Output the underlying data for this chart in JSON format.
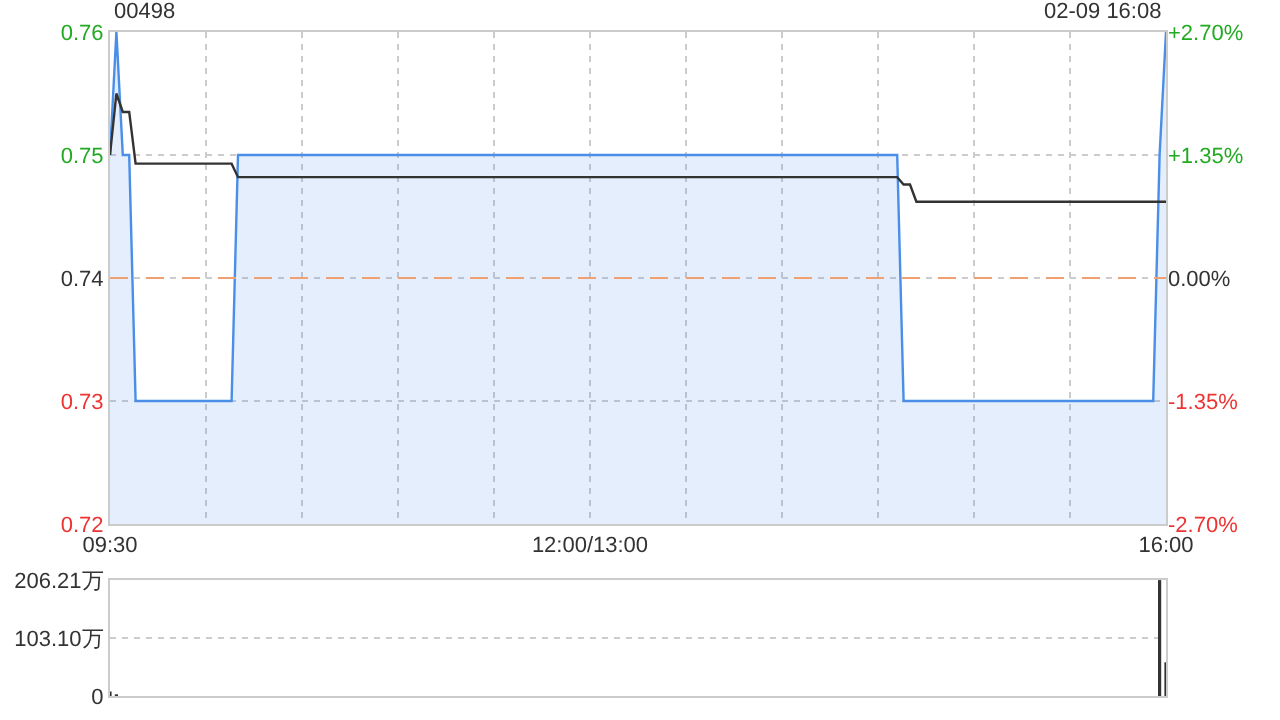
{
  "chart_data": [
    {
      "type": "area",
      "title": "00498",
      "annotations": [
        "02-09 16:08"
      ],
      "categories": [
        "09:30",
        null,
        null,
        null,
        null,
        null,
        null,
        null,
        null,
        null,
        null,
        null,
        null,
        null,
        null,
        null,
        null,
        null,
        null,
        null,
        null,
        null,
        null,
        null,
        null,
        null,
        null,
        null,
        null,
        null,
        null,
        null,
        null,
        null,
        null,
        null,
        null,
        null,
        null,
        null,
        null,
        null,
        null,
        null,
        null,
        null,
        null,
        null,
        null,
        null,
        null,
        null,
        null,
        null,
        null,
        null,
        null,
        null,
        null,
        null,
        null,
        null,
        null,
        null,
        null,
        null,
        null,
        null,
        null,
        null,
        null,
        null,
        null,
        null,
        null,
        "12:00/13:00",
        null,
        null,
        null,
        null,
        null,
        null,
        null,
        null,
        null,
        null,
        null,
        null,
        null,
        null,
        null,
        null,
        null,
        null,
        null,
        null,
        null,
        null,
        null,
        null,
        null,
        null,
        null,
        null,
        null,
        null,
        null,
        null,
        null,
        null,
        null,
        null,
        null,
        null,
        null,
        null,
        null,
        null,
        null,
        null,
        null,
        null,
        null,
        null,
        null,
        null,
        null,
        null,
        null,
        null,
        null,
        null,
        null,
        null,
        null,
        null,
        null,
        null,
        null,
        null,
        null,
        null,
        null,
        null,
        null,
        null,
        null,
        null,
        null,
        null,
        null,
        null,
        null,
        null,
        null,
        null,
        null,
        null,
        null,
        null,
        null,
        null,
        null,
        null,
        null,
        "16:00"
      ],
      "ylim": [
        0.72,
        0.76
      ],
      "yticks": [
        0.72,
        0.73,
        0.74,
        0.75,
        0.76
      ],
      "y2lim": [
        -2.7,
        2.7
      ],
      "y2ticks": [
        {
          "value": -2.7,
          "label": "-2.70%"
        },
        {
          "value": -1.35,
          "label": "-1.35%"
        },
        {
          "value": 0,
          "label": "0.00%"
        },
        {
          "value": 1.35,
          "label": "+1.35%"
        },
        {
          "value": 2.7,
          "label": "+2.70%"
        }
      ],
      "series": [
        {
          "type": "area",
          "color": "#4a8ee8",
          "values": [
            0.75,
            0.76,
            0.75,
            0.75,
            0.73,
            0.73,
            0.73,
            0.73,
            0.73,
            0.73,
            0.73,
            0.73,
            0.73,
            0.73,
            0.73,
            0.73,
            0.73,
            0.73,
            0.73,
            0.73,
            0.75,
            0.75,
            0.75,
            0.75,
            0.75,
            0.75,
            0.75,
            0.75,
            0.75,
            0.75,
            0.75,
            0.75,
            0.75,
            0.75,
            0.75,
            0.75,
            0.75,
            0.75,
            0.75,
            0.75,
            0.75,
            0.75,
            0.75,
            0.75,
            0.75,
            0.75,
            0.75,
            0.75,
            0.75,
            0.75,
            0.75,
            0.75,
            0.75,
            0.75,
            0.75,
            0.75,
            0.75,
            0.75,
            0.75,
            0.75,
            0.75,
            0.75,
            0.75,
            0.75,
            0.75,
            0.75,
            0.75,
            0.75,
            0.75,
            0.75,
            0.75,
            0.75,
            0.75,
            0.75,
            0.75,
            0.75,
            0.75,
            0.75,
            0.75,
            0.75,
            0.75,
            0.75,
            0.75,
            0.75,
            0.75,
            0.75,
            0.75,
            0.75,
            0.75,
            0.75,
            0.75,
            0.75,
            0.75,
            0.75,
            0.75,
            0.75,
            0.75,
            0.75,
            0.75,
            0.75,
            0.75,
            0.75,
            0.75,
            0.75,
            0.75,
            0.75,
            0.75,
            0.75,
            0.75,
            0.75,
            0.75,
            0.75,
            0.75,
            0.75,
            0.75,
            0.75,
            0.75,
            0.75,
            0.75,
            0.75,
            0.75,
            0.75,
            0.75,
            0.75,
            0.73,
            0.73,
            0.73,
            0.73,
            0.73,
            0.73,
            0.73,
            0.73,
            0.73,
            0.73,
            0.73,
            0.73,
            0.73,
            0.73,
            0.73,
            0.73,
            0.73,
            0.73,
            0.73,
            0.73,
            0.73,
            0.73,
            0.73,
            0.73,
            0.73,
            0.73,
            0.73,
            0.73,
            0.73,
            0.73,
            0.73,
            0.73,
            0.73,
            0.73,
            0.73,
            0.73,
            0.73,
            0.73,
            0.73,
            0.73,
            0.75,
            0.76
          ]
        },
        {
          "type": "line",
          "color": "#333333",
          "values": [
            0.75,
            0.755,
            0.7535,
            0.7535,
            0.7493,
            0.7493,
            0.7493,
            0.7493,
            0.7493,
            0.7493,
            0.7493,
            0.7493,
            0.7493,
            0.7493,
            0.7493,
            0.7493,
            0.7493,
            0.7493,
            0.7493,
            0.7493,
            0.7482,
            0.7482,
            0.7482,
            0.7482,
            0.7482,
            0.7482,
            0.7482,
            0.7482,
            0.7482,
            0.7482,
            0.7482,
            0.7482,
            0.7482,
            0.7482,
            0.7482,
            0.7482,
            0.7482,
            0.7482,
            0.7482,
            0.7482,
            0.7482,
            0.7482,
            0.7482,
            0.7482,
            0.7482,
            0.7482,
            0.7482,
            0.7482,
            0.7482,
            0.7482,
            0.7482,
            0.7482,
            0.7482,
            0.7482,
            0.7482,
            0.7482,
            0.7482,
            0.7482,
            0.7482,
            0.7482,
            0.7482,
            0.7482,
            0.7482,
            0.7482,
            0.7482,
            0.7482,
            0.7482,
            0.7482,
            0.7482,
            0.7482,
            0.7482,
            0.7482,
            0.7482,
            0.7482,
            0.7482,
            0.7482,
            0.7482,
            0.7482,
            0.7482,
            0.7482,
            0.7482,
            0.7482,
            0.7482,
            0.7482,
            0.7482,
            0.7482,
            0.7482,
            0.7482,
            0.7482,
            0.7482,
            0.7482,
            0.7482,
            0.7482,
            0.7482,
            0.7482,
            0.7482,
            0.7482,
            0.7482,
            0.7482,
            0.7482,
            0.7482,
            0.7482,
            0.7482,
            0.7482,
            0.7482,
            0.7482,
            0.7482,
            0.7482,
            0.7482,
            0.7482,
            0.7482,
            0.7482,
            0.7482,
            0.7482,
            0.7482,
            0.7482,
            0.7482,
            0.7482,
            0.7482,
            0.7482,
            0.7482,
            0.7482,
            0.7482,
            0.7482,
            0.7476,
            0.7476,
            0.7462,
            0.7462,
            0.7462,
            0.7462,
            0.7462,
            0.7462,
            0.7462,
            0.7462,
            0.7462,
            0.7462,
            0.7462,
            0.7462,
            0.7462,
            0.7462,
            0.7462,
            0.7462,
            0.7462,
            0.7462,
            0.7462,
            0.7462,
            0.7462,
            0.7462,
            0.7462,
            0.7462,
            0.7462,
            0.7462,
            0.7462,
            0.7462,
            0.7462,
            0.7462,
            0.7462,
            0.7462,
            0.7462,
            0.7462,
            0.7462,
            0.7462,
            0.7462,
            0.7462,
            0.7462,
            0.7462
          ]
        }
      ],
      "ref_lines": [
        {
          "axis": "y",
          "value": 0.74,
          "color": "#f0a070",
          "line_style": "dashed"
        }
      ],
      "grid": true
    },
    {
      "type": "bar",
      "color": "#333333",
      "categories": [
        null,
        null,
        null,
        null,
        null,
        null,
        null,
        null,
        null,
        null,
        null,
        null,
        null,
        null,
        null,
        null,
        null,
        null,
        null,
        null,
        null,
        null,
        null,
        null,
        null,
        null,
        null,
        null,
        null,
        null,
        null,
        null,
        null,
        null,
        null,
        null,
        null,
        null,
        null,
        null,
        null,
        null,
        null,
        null,
        null,
        null,
        null,
        null,
        null,
        null,
        null,
        null,
        null,
        null,
        null,
        null,
        null,
        null,
        null,
        null,
        null,
        null,
        null,
        null,
        null,
        null,
        null,
        null,
        null,
        null,
        null,
        null,
        null,
        null,
        null,
        null,
        null,
        null,
        null,
        null,
        null,
        null,
        null,
        null,
        null,
        null,
        null,
        null,
        null,
        null,
        null,
        null,
        null,
        null,
        null,
        null,
        null,
        null,
        null,
        null,
        null,
        null,
        null,
        null,
        null,
        null,
        null,
        null,
        null,
        null,
        null,
        null,
        null,
        null,
        null,
        null,
        null,
        null,
        null,
        null,
        null,
        null,
        null,
        null,
        null,
        null,
        null,
        null,
        null,
        null,
        null,
        null,
        null,
        null,
        null,
        null,
        null,
        null,
        null,
        null,
        null,
        null,
        null,
        null,
        null,
        null,
        null,
        null,
        null,
        null,
        null,
        null,
        null,
        null,
        null,
        null,
        null,
        null,
        null,
        null,
        null,
        null,
        null,
        null,
        null,
        null
      ],
      "values": [
        8,
        3,
        0,
        0,
        0,
        0,
        0,
        0,
        0,
        0,
        0,
        0,
        0,
        0,
        0,
        0,
        0,
        0,
        0,
        0,
        0,
        0,
        0,
        0,
        0,
        0,
        0,
        0,
        0,
        0,
        0,
        0,
        0,
        0,
        0,
        0,
        0,
        0,
        0,
        0,
        0,
        0,
        0,
        0,
        0,
        0,
        0,
        0,
        0,
        0,
        0,
        0,
        0,
        0,
        0,
        0,
        0,
        0,
        0,
        0,
        0,
        0,
        0,
        0,
        0,
        0,
        0,
        0,
        0,
        0,
        0,
        0,
        0,
        0,
        0,
        0,
        0,
        0,
        0,
        0,
        0,
        0,
        0,
        0,
        0,
        0,
        0,
        0,
        0,
        0,
        0,
        0,
        0,
        0,
        0,
        0,
        0,
        0,
        0,
        0,
        0,
        0,
        0,
        0,
        0,
        0,
        0,
        0,
        0,
        0,
        0,
        0,
        0,
        0,
        0,
        0,
        0,
        0,
        0,
        0,
        0,
        0,
        0,
        0,
        0,
        0,
        0,
        0,
        0,
        0,
        0,
        0,
        0,
        0,
        0,
        0,
        0,
        0,
        0,
        0,
        0,
        0,
        0,
        0,
        0,
        0,
        0,
        0,
        0,
        0,
        0,
        0,
        0,
        0,
        0,
        0,
        0,
        0,
        0,
        0,
        0,
        0,
        0,
        0,
        206,
        60
      ],
      "ylim": [
        0,
        206.21
      ],
      "yticks": [
        0,
        {
          "value": 103.1,
          "label": "103.10万"
        },
        {
          "value": 206.21,
          "label": "206.21万"
        }
      ],
      "tick_labels": "y",
      "grid": "y"
    }
  ]
}
